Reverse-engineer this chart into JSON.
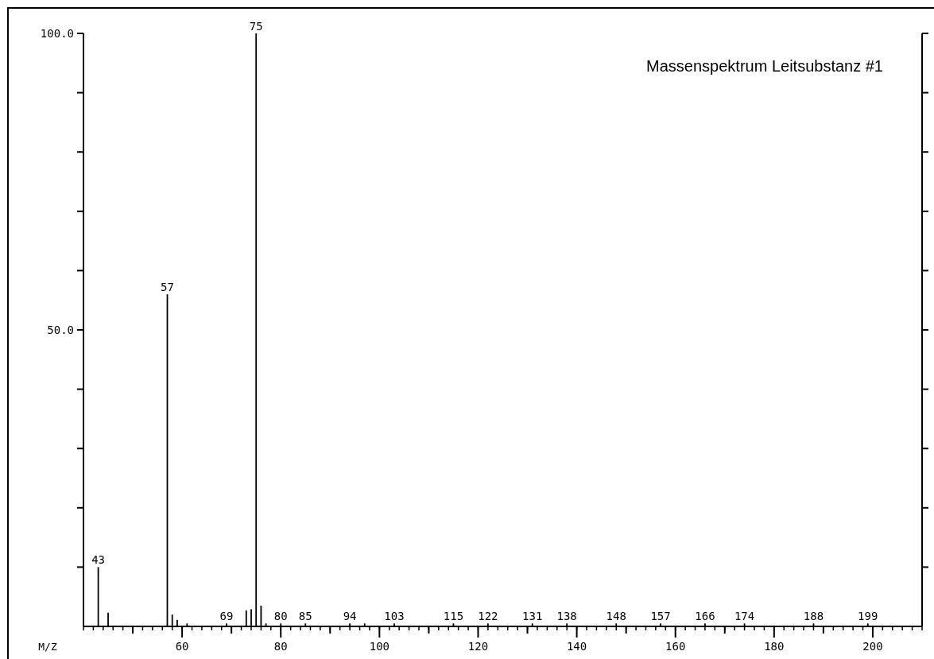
{
  "chart_data": {
    "type": "bar",
    "title": "Massenspektrum Leitsubstanz #1",
    "xlabel": "M/Z",
    "x": [
      43,
      45,
      57,
      58,
      59,
      61,
      69,
      73,
      74,
      75,
      76,
      77,
      80,
      85,
      94,
      97,
      103,
      115,
      122,
      131,
      138,
      148,
      157,
      166,
      174,
      188,
      199
    ],
    "values": [
      10,
      2.3,
      56,
      2,
      1.1,
      0.5,
      0.5,
      2.7,
      2.9,
      100,
      3.5,
      0.5,
      0.5,
      0.5,
      0.5,
      0.5,
      0.5,
      0.5,
      0.5,
      0.5,
      0.5,
      0.5,
      0.5,
      0.5,
      0.5,
      0.5,
      0.5
    ],
    "color": "#000000",
    "xlim": [
      40,
      210
    ],
    "xticks": [
      {
        "value": 50,
        "label": null
      },
      60,
      {
        "value": 70,
        "label": null
      },
      80,
      {
        "value": 90,
        "label": null
      },
      100,
      {
        "value": 110,
        "label": null
      },
      120,
      {
        "value": 130,
        "label": null
      },
      140,
      {
        "value": 150,
        "label": null
      },
      160,
      {
        "value": 170,
        "label": null
      },
      180,
      {
        "value": 190,
        "label": null
      },
      200
    ],
    "ylim": [
      0,
      100
    ],
    "yticks": [
      {
        "value": 10,
        "label": null
      },
      {
        "value": 20,
        "label": null
      },
      {
        "value": 30,
        "label": null
      },
      {
        "value": 40,
        "label": null
      },
      {
        "value": 50,
        "label": "50.0"
      },
      {
        "value": 60,
        "label": null
      },
      {
        "value": 70,
        "label": null
      },
      {
        "value": 80,
        "label": null
      },
      {
        "value": 90,
        "label": null
      },
      {
        "value": 100,
        "label": "100.0"
      }
    ],
    "annotations": [
      {
        "text": "43",
        "x": 43,
        "y": 10
      },
      {
        "text": "57",
        "x": 57,
        "y": 56
      },
      {
        "text": "69",
        "x": 69,
        "y": 0.5
      },
      {
        "text": "75",
        "x": 75,
        "y": 100
      },
      {
        "text": "80",
        "x": 80,
        "y": 0.5
      },
      {
        "text": "85",
        "x": 85,
        "y": 0.5
      },
      {
        "text": "94",
        "x": 94,
        "y": 0.5
      },
      {
        "text": "103",
        "x": 103,
        "y": 0.5
      },
      {
        "text": "115",
        "x": 115,
        "y": 0.5
      },
      {
        "text": "122",
        "x": 122,
        "y": 0.5
      },
      {
        "text": "131",
        "x": 131,
        "y": 0.5
      },
      {
        "text": "138",
        "x": 138,
        "y": 0.5
      },
      {
        "text": "148",
        "x": 148,
        "y": 0.5
      },
      {
        "text": "157",
        "x": 157,
        "y": 0.5
      },
      {
        "text": "166",
        "x": 166,
        "y": 0.5
      },
      {
        "text": "174",
        "x": 174,
        "y": 0.5
      },
      {
        "text": "188",
        "x": 188,
        "y": 0.5
      },
      {
        "text": "199",
        "x": 199,
        "y": 0.5
      }
    ],
    "grid": false
  }
}
